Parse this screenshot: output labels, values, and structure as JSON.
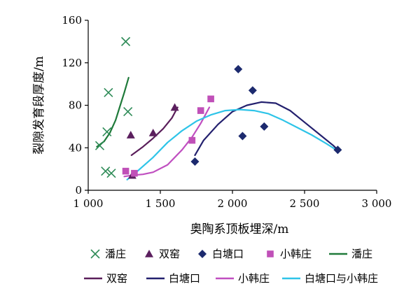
{
  "chart_data": {
    "type": "scatter",
    "xlabel": "奥陶系顶板埋深/m",
    "ylabel": "裂隙发育段厚度/m",
    "xlim": [
      1000,
      3000
    ],
    "ylim": [
      0,
      160
    ],
    "x_ticks": [
      1000,
      1500,
      2000,
      2500,
      3000
    ],
    "x_tick_labels": [
      "1 000",
      "1 500",
      "2 000",
      "2 500",
      "3 000"
    ],
    "y_ticks": [
      0,
      40,
      80,
      120,
      160
    ],
    "y_tick_labels": [
      "0",
      "40",
      "80",
      "120",
      "160"
    ],
    "grid": false,
    "legend_position": "bottom",
    "scatter_series": [
      {
        "name": "潘庄",
        "marker": "x",
        "color": "#2e8b57",
        "points": [
          [
            1080,
            42
          ],
          [
            1120,
            18
          ],
          [
            1130,
            55
          ],
          [
            1140,
            92
          ],
          [
            1160,
            16
          ],
          [
            1260,
            140
          ],
          [
            1275,
            74
          ]
        ]
      },
      {
        "name": "双窑",
        "marker": "triangle",
        "color": "#5b1f5e",
        "points": [
          [
            1295,
            52
          ],
          [
            1305,
            14
          ],
          [
            1450,
            54
          ],
          [
            1600,
            78
          ]
        ]
      },
      {
        "name": "白塘口",
        "marker": "diamond",
        "color": "#1c2a6e",
        "points": [
          [
            1740,
            27
          ],
          [
            2040,
            114
          ],
          [
            2070,
            51
          ],
          [
            2140,
            94
          ],
          [
            2220,
            60
          ],
          [
            2730,
            38
          ]
        ]
      },
      {
        "name": "小韩庄",
        "marker": "square",
        "color": "#c050b8",
        "points": [
          [
            1260,
            18
          ],
          [
            1320,
            16
          ],
          [
            1720,
            47
          ],
          [
            1780,
            75
          ],
          [
            1850,
            86
          ]
        ]
      }
    ],
    "line_series": [
      {
        "name": "潘庄",
        "color": "#1f7a3a",
        "points": [
          [
            1060,
            41
          ],
          [
            1110,
            46
          ],
          [
            1150,
            54
          ],
          [
            1190,
            66
          ],
          [
            1220,
            79
          ],
          [
            1250,
            92
          ],
          [
            1280,
            106
          ]
        ]
      },
      {
        "name": "双窑",
        "color": "#5a1e5a",
        "points": [
          [
            1300,
            33
          ],
          [
            1380,
            41
          ],
          [
            1450,
            49
          ],
          [
            1520,
            58
          ],
          [
            1580,
            68
          ],
          [
            1620,
            78
          ]
        ]
      },
      {
        "name": "白塘口",
        "color": "#23206e",
        "points": [
          [
            1740,
            33
          ],
          [
            1800,
            47
          ],
          [
            1900,
            62
          ],
          [
            2000,
            74
          ],
          [
            2100,
            80
          ],
          [
            2200,
            83
          ],
          [
            2300,
            82
          ],
          [
            2400,
            75
          ],
          [
            2500,
            64
          ],
          [
            2600,
            53
          ],
          [
            2700,
            42
          ],
          [
            2730,
            38
          ]
        ]
      },
      {
        "name": "小韩庄",
        "color": "#c04fc0",
        "points": [
          [
            1250,
            13
          ],
          [
            1300,
            14
          ],
          [
            1380,
            15
          ],
          [
            1450,
            17
          ],
          [
            1550,
            24
          ],
          [
            1650,
            38
          ],
          [
            1720,
            50
          ],
          [
            1780,
            63
          ],
          [
            1840,
            78
          ]
        ]
      },
      {
        "name": "白塘口与小韩庄",
        "color": "#2ec4e8",
        "points": [
          [
            1270,
            10
          ],
          [
            1350,
            19
          ],
          [
            1450,
            31
          ],
          [
            1550,
            45
          ],
          [
            1650,
            56
          ],
          [
            1750,
            65
          ],
          [
            1850,
            71
          ],
          [
            1950,
            75
          ],
          [
            2050,
            76
          ],
          [
            2150,
            75
          ],
          [
            2250,
            72
          ],
          [
            2350,
            66
          ],
          [
            2450,
            59
          ],
          [
            2550,
            52
          ],
          [
            2650,
            44
          ],
          [
            2720,
            38
          ]
        ]
      }
    ]
  }
}
